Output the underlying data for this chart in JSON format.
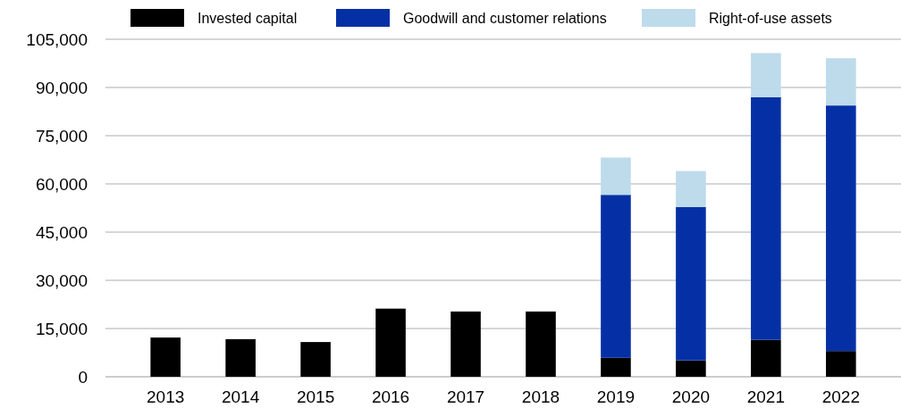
{
  "chart_data": {
    "type": "bar",
    "stacked": true,
    "categories": [
      "2013",
      "2014",
      "2015",
      "2016",
      "2017",
      "2018",
      "2019",
      "2020",
      "2021",
      "2022"
    ],
    "series": [
      {
        "name": "Invested capital",
        "color": "#000000",
        "values": [
          12200,
          11700,
          10800,
          21200,
          20300,
          20300,
          5900,
          5100,
          11500,
          8000
        ]
      },
      {
        "name": "Goodwill and customer relations",
        "color": "#0530a5",
        "values": [
          null,
          null,
          null,
          null,
          null,
          null,
          50700,
          47700,
          75500,
          76400
        ]
      },
      {
        "name": "Right-of-use assets",
        "color": "#bddbeb",
        "values": [
          null,
          null,
          null,
          null,
          null,
          null,
          11600,
          11200,
          13700,
          14700
        ]
      }
    ],
    "ylim": [
      0,
      105000
    ],
    "yticks": [
      {
        "value": 0,
        "label": "0"
      },
      {
        "value": 15000,
        "label": "15,000"
      },
      {
        "value": 30000,
        "label": "30,000"
      },
      {
        "value": 45000,
        "label": "45,000"
      },
      {
        "value": 60000,
        "label": "60,000"
      },
      {
        "value": 75000,
        "label": "75,000"
      },
      {
        "value": 90000,
        "label": "90,000"
      },
      {
        "value": 105000,
        "label": "105,000"
      }
    ],
    "grid": "y",
    "legend": "top"
  }
}
